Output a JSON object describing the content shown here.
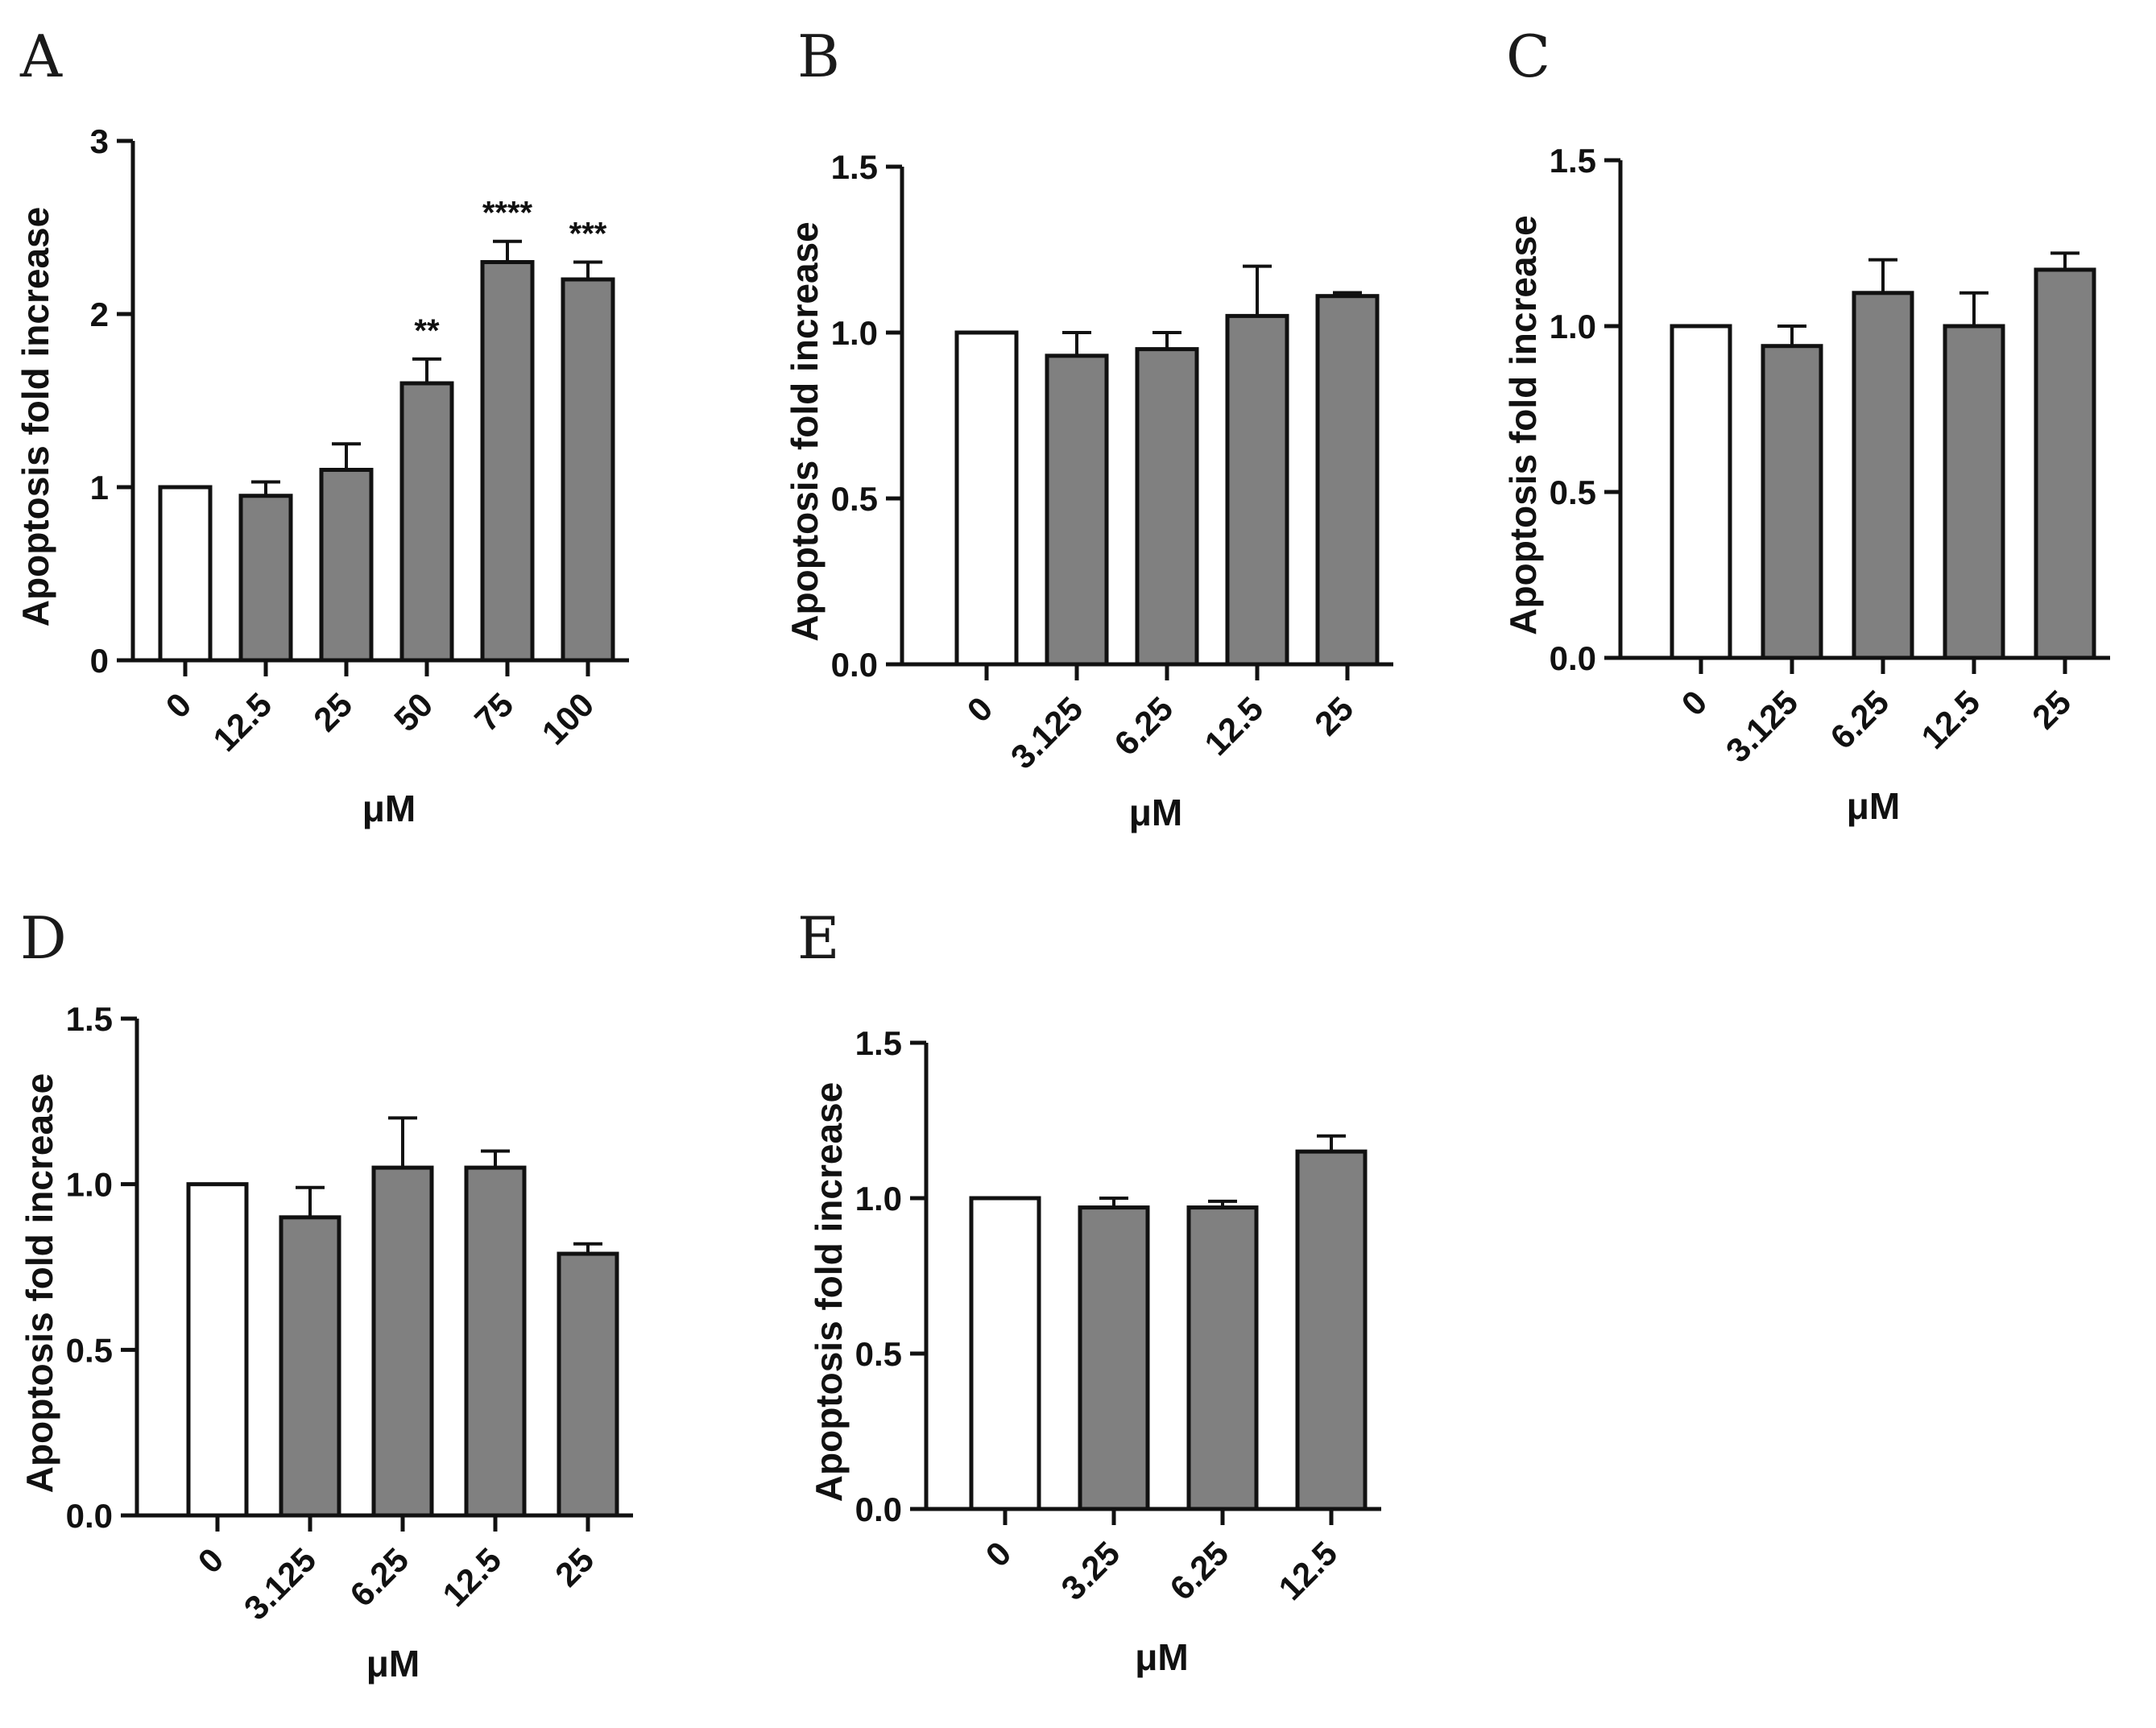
{
  "chart_data": [
    {
      "panel": "A",
      "type": "bar",
      "categories": [
        "0",
        "12.5",
        "25",
        "50",
        "75",
        "100"
      ],
      "values": [
        1.0,
        0.95,
        1.1,
        1.6,
        2.3,
        2.2
      ],
      "errors": [
        0,
        0.08,
        0.15,
        0.14,
        0.12,
        0.1
      ],
      "significance": [
        "",
        "",
        "",
        "**",
        "****",
        "***"
      ],
      "bar_colors": [
        "#ffffff",
        "#808080",
        "#808080",
        "#808080",
        "#808080",
        "#808080"
      ],
      "ylim": [
        0,
        3
      ],
      "yticks": [
        "0",
        "1",
        "2",
        "3"
      ],
      "ylabel": "Apoptosis fold increase",
      "xlabel": "μM"
    },
    {
      "panel": "B",
      "type": "bar",
      "categories": [
        "0",
        "3.125",
        "6.25",
        "12.5",
        "25"
      ],
      "values": [
        1.0,
        0.93,
        0.95,
        1.05,
        1.11
      ],
      "errors": [
        0,
        0.07,
        0.05,
        0.15,
        0.01
      ],
      "significance": [
        "",
        "",
        "",
        "",
        ""
      ],
      "bar_colors": [
        "#ffffff",
        "#808080",
        "#808080",
        "#808080",
        "#808080"
      ],
      "ylim": [
        0,
        1.5
      ],
      "yticks": [
        "0.0",
        "0.5",
        "1.0",
        "1.5"
      ],
      "ylabel": "Apoptosis fold increase",
      "xlabel": "μM"
    },
    {
      "panel": "C",
      "type": "bar",
      "categories": [
        "0",
        "3.125",
        "6.25",
        "12.5",
        "25"
      ],
      "values": [
        1.0,
        0.94,
        1.1,
        1.0,
        1.17
      ],
      "errors": [
        0,
        0.06,
        0.1,
        0.1,
        0.05
      ],
      "significance": [
        "",
        "",
        "",
        "",
        ""
      ],
      "bar_colors": [
        "#ffffff",
        "#808080",
        "#808080",
        "#808080",
        "#808080"
      ],
      "ylim": [
        0,
        1.5
      ],
      "yticks": [
        "0.0",
        "0.5",
        "1.0",
        "1.5"
      ],
      "ylabel": "Apoptosis fold increase",
      "xlabel": "μM"
    },
    {
      "panel": "D",
      "type": "bar",
      "categories": [
        "0",
        "3.125",
        "6.25",
        "12.5",
        "25"
      ],
      "values": [
        1.0,
        0.9,
        1.05,
        1.05,
        0.79
      ],
      "errors": [
        0,
        0.09,
        0.15,
        0.05,
        0.03
      ],
      "significance": [
        "",
        "",
        "",
        "",
        ""
      ],
      "bar_colors": [
        "#ffffff",
        "#808080",
        "#808080",
        "#808080",
        "#808080"
      ],
      "ylim": [
        0,
        1.5
      ],
      "yticks": [
        "0.0",
        "0.5",
        "1.0",
        "1.5"
      ],
      "ylabel": "Apoptosis fold increase",
      "xlabel": "μM"
    },
    {
      "panel": "E",
      "type": "bar",
      "categories": [
        "0",
        "3.25",
        "6.25",
        "12.5"
      ],
      "values": [
        1.0,
        0.97,
        0.97,
        1.15
      ],
      "errors": [
        0,
        0.03,
        0.02,
        0.05
      ],
      "significance": [
        "",
        "",
        "",
        ""
      ],
      "bar_colors": [
        "#ffffff",
        "#808080",
        "#808080",
        "#808080"
      ],
      "ylim": [
        0,
        1.5
      ],
      "yticks": [
        "0.0",
        "0.5",
        "1.0",
        "1.5"
      ],
      "ylabel": "Apoptosis fold increase",
      "xlabel": "μM"
    }
  ]
}
